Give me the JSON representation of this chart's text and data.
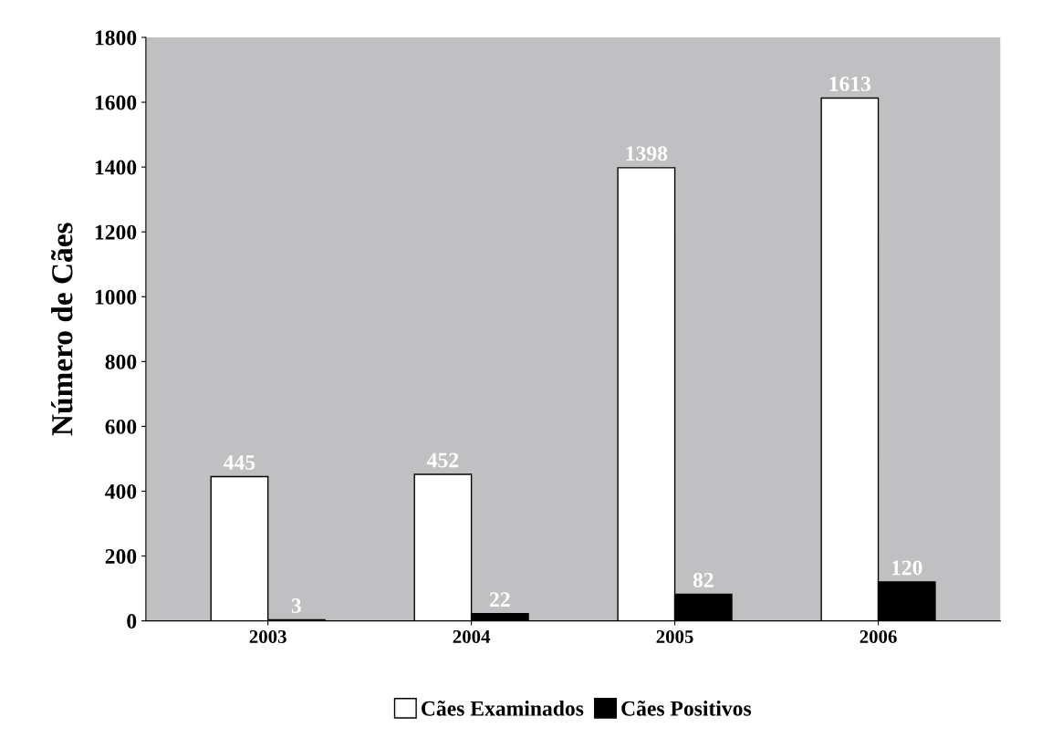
{
  "chart_data": {
    "type": "bar",
    "ylabel": "Número de Cães",
    "categories": [
      "2003",
      "2004",
      "2005",
      "2006"
    ],
    "series": [
      {
        "name": "Cães Examinados",
        "color": "#ffffff",
        "values": [
          445,
          452,
          1398,
          1613
        ]
      },
      {
        "name": "Cães Positivos",
        "color": "#000000",
        "values": [
          3,
          22,
          82,
          120
        ]
      }
    ],
    "ylim": [
      0,
      1800
    ],
    "yticks": [
      0,
      200,
      400,
      600,
      800,
      1000,
      1200,
      1400,
      1600,
      1800
    ],
    "data_labels": true,
    "legend": "bottom",
    "grid": false
  }
}
